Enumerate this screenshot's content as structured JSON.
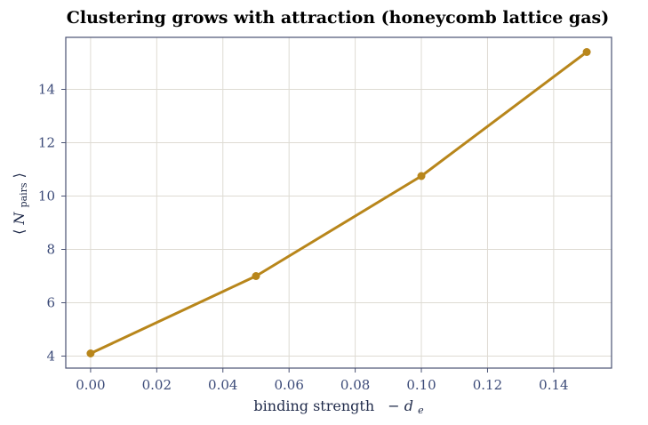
{
  "chart_data": {
    "type": "line",
    "title": "Clustering grows with attraction (honeycomb lattice gas)",
    "xlabel_text": "binding strength",
    "xlabel_math": {
      "sign": "−",
      "symbol": "d",
      "subscript": "e"
    },
    "ylabel_math": {
      "open": "⟨",
      "symbol": "N",
      "subscript": "pairs",
      "close": "⟩"
    },
    "x": [
      0.0,
      0.05,
      0.1,
      0.15
    ],
    "y": [
      4.1,
      7.0,
      10.75,
      15.4
    ],
    "xlim": [
      -0.0075,
      0.1575
    ],
    "ylim": [
      3.55,
      15.95
    ],
    "xticks": [
      0.0,
      0.02,
      0.04,
      0.06,
      0.08,
      0.1,
      0.12,
      0.14
    ],
    "xtick_labels": [
      "0.00",
      "0.02",
      "0.04",
      "0.06",
      "0.08",
      "0.10",
      "0.12",
      "0.14"
    ],
    "yticks": [
      4,
      6,
      8,
      10,
      12,
      14
    ],
    "ytick_labels": [
      "4",
      "6",
      "8",
      "10",
      "12",
      "14"
    ],
    "grid": true,
    "legend": "none",
    "colors": {
      "line": "#b8861b",
      "grid": "#dedbd3",
      "frame": "#4a5273",
      "tick_text": "#3b4a78"
    }
  }
}
